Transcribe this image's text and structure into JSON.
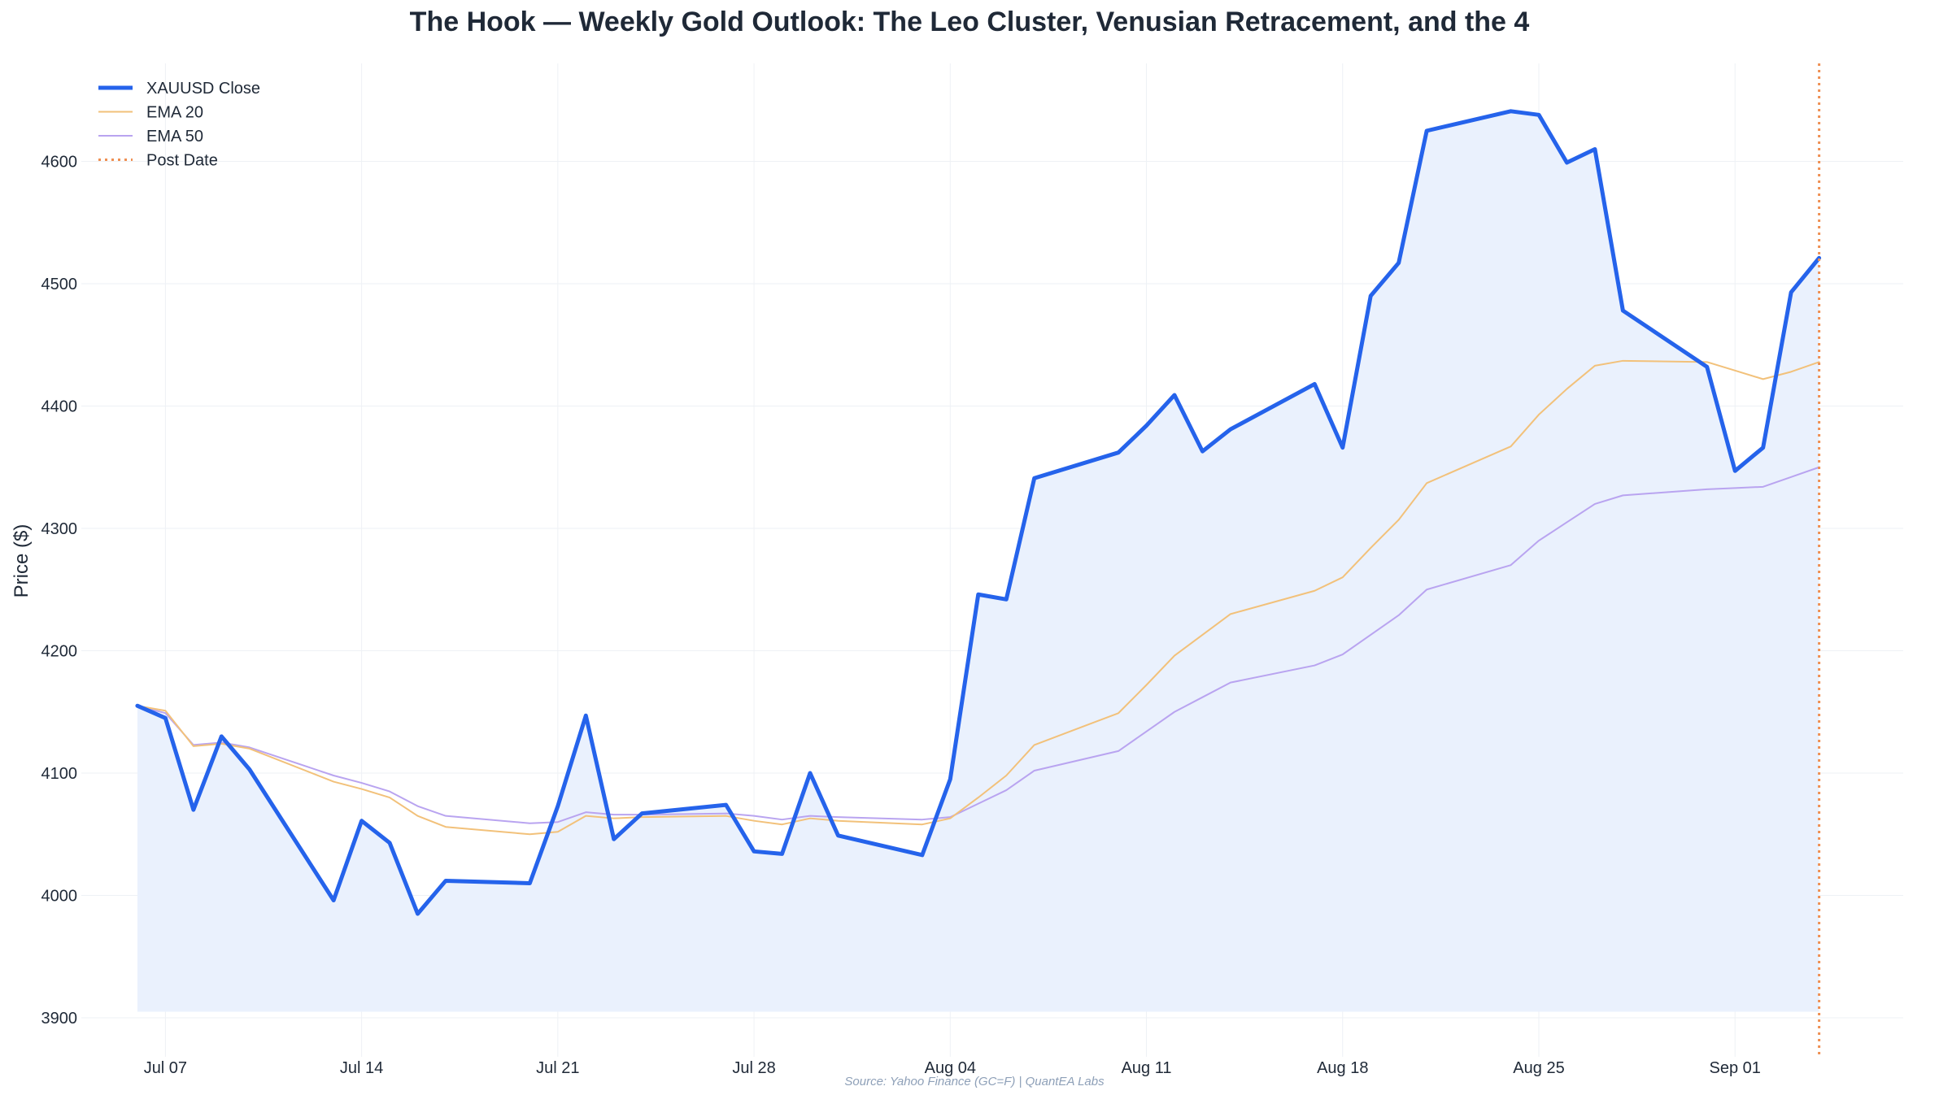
{
  "chart_data": {
    "type": "line",
    "title": "The Hook — Weekly Gold Outlook: The Leo Cluster, Venusian Retracement, and the 4",
    "xlabel": "",
    "ylabel": "Price ($)",
    "ylim": [
      3900,
      4680
    ],
    "xlim": [
      "2025-07-04",
      "2025-09-07"
    ],
    "grid": true,
    "legend_placement": "top-left",
    "x_ticks": [
      {
        "date": "2025-07-07",
        "label": "Jul 07"
      },
      {
        "date": "2025-07-14",
        "label": "Jul 14"
      },
      {
        "date": "2025-07-21",
        "label": "Jul 21"
      },
      {
        "date": "2025-07-28",
        "label": "Jul 28"
      },
      {
        "date": "2025-08-04",
        "label": "Aug 04"
      },
      {
        "date": "2025-08-11",
        "label": "Aug 11"
      },
      {
        "date": "2025-08-18",
        "label": "Aug 18"
      },
      {
        "date": "2025-08-25",
        "label": "Aug 25"
      },
      {
        "date": "2025-09-01",
        "label": "Sep 01"
      }
    ],
    "y_ticks": [
      3900,
      4000,
      4100,
      4200,
      4300,
      4400,
      4500,
      4600
    ],
    "x": [
      "2025-07-06",
      "2025-07-07",
      "2025-07-08",
      "2025-07-09",
      "2025-07-10",
      "2025-07-13",
      "2025-07-14",
      "2025-07-15",
      "2025-07-16",
      "2025-07-17",
      "2025-07-20",
      "2025-07-21",
      "2025-07-22",
      "2025-07-23",
      "2025-07-24",
      "2025-07-27",
      "2025-07-28",
      "2025-07-29",
      "2025-07-30",
      "2025-07-31",
      "2025-08-03",
      "2025-08-04",
      "2025-08-05",
      "2025-08-06",
      "2025-08-07",
      "2025-08-10",
      "2025-08-11",
      "2025-08-12",
      "2025-08-13",
      "2025-08-14",
      "2025-08-17",
      "2025-08-18",
      "2025-08-19",
      "2025-08-20",
      "2025-08-21",
      "2025-08-24",
      "2025-08-25",
      "2025-08-26",
      "2025-08-27",
      "2025-08-28",
      "2025-08-31",
      "2025-09-01",
      "2025-09-02",
      "2025-09-03",
      "2025-09-04"
    ],
    "series": [
      {
        "name": "XAUUSD Close",
        "color": "#2563eb",
        "values": [
          4155,
          4145,
          4070,
          4130,
          4103,
          3996,
          4061,
          4043,
          3985,
          4012,
          4010,
          4073,
          4147,
          4046,
          4067,
          4074,
          4036,
          4034,
          4100,
          4049,
          4033,
          4095,
          4246,
          4242,
          4341,
          4362,
          4384,
          4409,
          4363,
          4381,
          4418,
          4366,
          4490,
          4517,
          4625,
          4641,
          4638,
          4599,
          4610,
          4478,
          4432,
          4347,
          4366,
          4493,
          4521
        ]
      },
      {
        "name": "EMA 20",
        "color": "#f2c17a",
        "values": [
          4155,
          4151,
          4122,
          4124,
          4120,
          4093,
          4087,
          4080,
          4065,
          4056,
          4050,
          4052,
          4065,
          4063,
          4064,
          4065,
          4061,
          4058,
          4063,
          4061,
          4058,
          4063,
          4080,
          4098,
          4123,
          4149,
          4172,
          4196,
          4213,
          4230,
          4249,
          4260,
          4284,
          4307,
          4337,
          4367,
          4393,
          4414,
          4433,
          4437,
          4436,
          4429,
          4422,
          4428,
          4436
        ]
      },
      {
        "name": "EMA 50",
        "color": "#b9a4f0",
        "values": [
          4155,
          4149,
          4123,
          4125,
          4121,
          4098,
          4092,
          4085,
          4073,
          4065,
          4059,
          4060,
          4068,
          4066,
          4066,
          4067,
          4065,
          4062,
          4065,
          4064,
          4062,
          4064,
          4075,
          4086,
          4102,
          4118,
          4134,
          4150,
          4162,
          4174,
          4188,
          4197,
          4213,
          4229,
          4250,
          4270,
          4290,
          4305,
          4320,
          4327,
          4332,
          4333,
          4334,
          4342,
          4350
        ]
      },
      {
        "name": "Post Date",
        "color": "#ef8f52",
        "x": "2025-09-04"
      }
    ]
  },
  "source": "Source: Yahoo Finance (GC=F) | QuantEA Labs"
}
